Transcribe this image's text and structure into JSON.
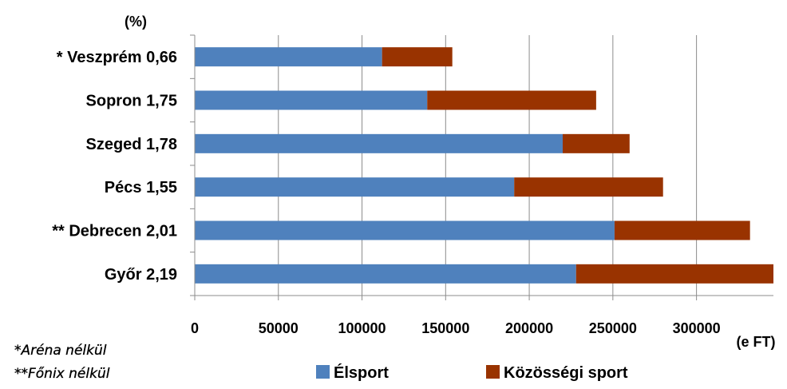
{
  "chart_data": {
    "type": "bar",
    "orientation": "horizontal",
    "stacked": true,
    "y_unit_label": "(%)",
    "x_unit_label": "(e FT)",
    "categories": [
      "Győr 2,19",
      "** Debrecen 2,01",
      "Pécs 1,55",
      "Szeged 1,78",
      "Sopron 1,75",
      "* Veszprém 0,66"
    ],
    "series": [
      {
        "name": "Élsport",
        "color": "#4f81bd",
        "values": [
          228000,
          251000,
          191000,
          220000,
          139000,
          112000
        ]
      },
      {
        "name": "Közösségi sport",
        "color": "#993300",
        "values": [
          118000,
          81000,
          89000,
          40000,
          101000,
          42000
        ]
      }
    ],
    "xlim": [
      0,
      346000
    ],
    "x_ticks": [
      "0",
      "50000",
      "100000",
      "150000",
      "200000",
      "250000",
      "300000"
    ],
    "x_tick_values": [
      0,
      50000,
      100000,
      150000,
      200000,
      250000,
      300000
    ],
    "grid": "vertical",
    "legend_position": "bottom",
    "footnotes": [
      "*Aréna nélkül",
      "**Főnix nélkül"
    ]
  }
}
